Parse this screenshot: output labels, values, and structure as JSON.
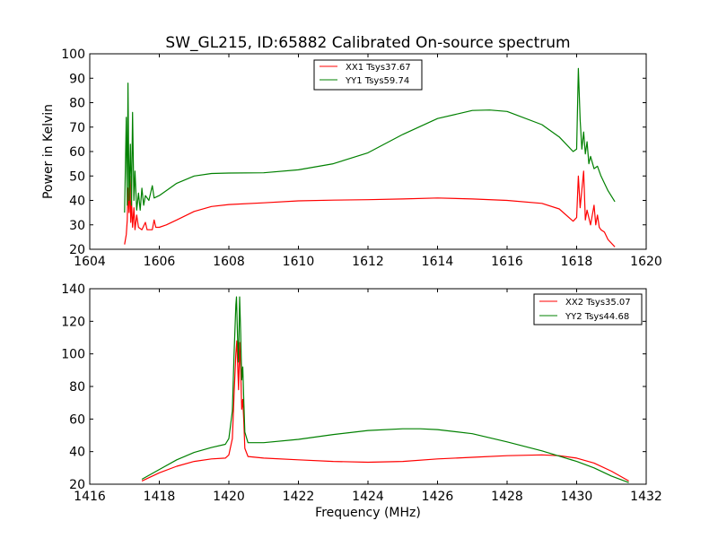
{
  "chart_data": [
    {
      "type": "line",
      "title": "SW_GL215, ID:65882 Calibrated On-source spectrum",
      "xlabel": "",
      "ylabel": "Power in Kelvin",
      "xlim": [
        1604,
        1620
      ],
      "ylim": [
        20,
        100
      ],
      "xticks": [
        1604,
        1606,
        1608,
        1610,
        1612,
        1614,
        1616,
        1618,
        1620
      ],
      "yticks": [
        20,
        30,
        40,
        50,
        60,
        70,
        80,
        90,
        100
      ],
      "legend_position": "top-center",
      "series": [
        {
          "name": "XX1 Tsys37.67",
          "color": "#ff0000",
          "points": [
            [
              1605.0,
              22
            ],
            [
              1605.05,
              26
            ],
            [
              1605.08,
              32
            ],
            [
              1605.1,
              45
            ],
            [
              1605.13,
              35
            ],
            [
              1605.15,
              50
            ],
            [
              1605.18,
              31
            ],
            [
              1605.2,
              40
            ],
            [
              1605.23,
              29
            ],
            [
              1605.27,
              37
            ],
            [
              1605.3,
              28
            ],
            [
              1605.35,
              34
            ],
            [
              1605.4,
              29
            ],
            [
              1605.5,
              28
            ],
            [
              1605.6,
              31
            ],
            [
              1605.65,
              28
            ],
            [
              1605.8,
              28
            ],
            [
              1605.85,
              32
            ],
            [
              1605.9,
              29
            ],
            [
              1606.0,
              29
            ],
            [
              1606.2,
              30
            ],
            [
              1606.5,
              32
            ],
            [
              1607.0,
              35.5
            ],
            [
              1607.5,
              37.5
            ],
            [
              1608,
              38.3
            ],
            [
              1609,
              39
            ],
            [
              1610,
              39.8
            ],
            [
              1611,
              40.1
            ],
            [
              1612,
              40.3
            ],
            [
              1613,
              40.6
            ],
            [
              1614,
              41
            ],
            [
              1615,
              40.6
            ],
            [
              1616,
              40
            ],
            [
              1617,
              38.8
            ],
            [
              1617.5,
              36.5
            ],
            [
              1617.9,
              31.5
            ],
            [
              1618.0,
              33
            ],
            [
              1618.05,
              50
            ],
            [
              1618.1,
              37
            ],
            [
              1618.2,
              52
            ],
            [
              1618.25,
              32
            ],
            [
              1618.3,
              36
            ],
            [
              1618.4,
              30
            ],
            [
              1618.5,
              38
            ],
            [
              1618.55,
              30
            ],
            [
              1618.6,
              34
            ],
            [
              1618.65,
              29
            ],
            [
              1618.7,
              28
            ],
            [
              1618.8,
              27
            ],
            [
              1618.9,
              24
            ],
            [
              1619.1,
              21
            ]
          ]
        },
        {
          "name": "YY1 Tsys59.74",
          "color": "#008000",
          "points": [
            [
              1605.0,
              35
            ],
            [
              1605.05,
              74
            ],
            [
              1605.08,
              38
            ],
            [
              1605.1,
              88
            ],
            [
              1605.13,
              40
            ],
            [
              1605.17,
              63
            ],
            [
              1605.2,
              38
            ],
            [
              1605.23,
              76
            ],
            [
              1605.27,
              40
            ],
            [
              1605.3,
              52
            ],
            [
              1605.35,
              36
            ],
            [
              1605.4,
              43
            ],
            [
              1605.45,
              36
            ],
            [
              1605.5,
              45
            ],
            [
              1605.55,
              38
            ],
            [
              1605.6,
              42
            ],
            [
              1605.7,
              40
            ],
            [
              1605.8,
              46
            ],
            [
              1605.85,
              41
            ],
            [
              1606.0,
              42
            ],
            [
              1606.2,
              44
            ],
            [
              1606.5,
              47
            ],
            [
              1607.0,
              50
            ],
            [
              1607.5,
              51
            ],
            [
              1608,
              51.2
            ],
            [
              1609,
              51.3
            ],
            [
              1610,
              52.5
            ],
            [
              1611,
              55
            ],
            [
              1612,
              59.5
            ],
            [
              1613,
              67
            ],
            [
              1614,
              73.5
            ],
            [
              1615,
              76.8
            ],
            [
              1615.5,
              77
            ],
            [
              1616,
              76.4
            ],
            [
              1617,
              71
            ],
            [
              1617.5,
              66
            ],
            [
              1617.9,
              60
            ],
            [
              1618.0,
              61
            ],
            [
              1618.05,
              94
            ],
            [
              1618.1,
              73
            ],
            [
              1618.15,
              61
            ],
            [
              1618.2,
              68
            ],
            [
              1618.25,
              59
            ],
            [
              1618.3,
              64
            ],
            [
              1618.35,
              55
            ],
            [
              1618.4,
              58
            ],
            [
              1618.5,
              53
            ],
            [
              1618.6,
              54
            ],
            [
              1618.7,
              50
            ],
            [
              1618.9,
              44
            ],
            [
              1619.1,
              39.5
            ]
          ]
        }
      ]
    },
    {
      "type": "line",
      "title": "",
      "xlabel": "Frequency (MHz)",
      "ylabel": "",
      "xlim": [
        1416,
        1432
      ],
      "ylim": [
        20,
        140
      ],
      "xticks": [
        1416,
        1418,
        1420,
        1422,
        1424,
        1426,
        1428,
        1430,
        1432
      ],
      "yticks": [
        20,
        40,
        60,
        80,
        100,
        120,
        140
      ],
      "legend_position": "top-right",
      "series": [
        {
          "name": "XX2 Tsys35.07",
          "color": "#ff0000",
          "points": [
            [
              1417.5,
              22
            ],
            [
              1418,
              27
            ],
            [
              1418.5,
              31
            ],
            [
              1419,
              34
            ],
            [
              1419.5,
              35.5
            ],
            [
              1419.9,
              36
            ],
            [
              1420.0,
              38
            ],
            [
              1420.1,
              48
            ],
            [
              1420.15,
              75
            ],
            [
              1420.2,
              100
            ],
            [
              1420.23,
              108
            ],
            [
              1420.25,
              95
            ],
            [
              1420.28,
              78
            ],
            [
              1420.31,
              107
            ],
            [
              1420.34,
              90
            ],
            [
              1420.37,
              66
            ],
            [
              1420.4,
              72
            ],
            [
              1420.43,
              58
            ],
            [
              1420.46,
              42
            ],
            [
              1420.55,
              37
            ],
            [
              1421,
              36
            ],
            [
              1422,
              35
            ],
            [
              1423,
              34
            ],
            [
              1424,
              33.5
            ],
            [
              1425,
              34
            ],
            [
              1426,
              35.5
            ],
            [
              1427,
              36.5
            ],
            [
              1428,
              37.5
            ],
            [
              1429,
              38
            ],
            [
              1429.5,
              37.5
            ],
            [
              1430,
              36
            ],
            [
              1430.5,
              33
            ],
            [
              1431,
              28
            ],
            [
              1431.5,
              22
            ]
          ]
        },
        {
          "name": "YY2 Tsys44.68",
          "color": "#008000",
          "points": [
            [
              1417.5,
              23
            ],
            [
              1418,
              29
            ],
            [
              1418.5,
              35
            ],
            [
              1419,
              39.5
            ],
            [
              1419.5,
              42.5
            ],
            [
              1419.9,
              44.5
            ],
            [
              1420.0,
              48
            ],
            [
              1420.1,
              65
            ],
            [
              1420.15,
              100
            ],
            [
              1420.2,
              130
            ],
            [
              1420.22,
              135
            ],
            [
              1420.25,
              110
            ],
            [
              1420.28,
              95
            ],
            [
              1420.31,
              135
            ],
            [
              1420.34,
              112
            ],
            [
              1420.37,
              84
            ],
            [
              1420.4,
              92
            ],
            [
              1420.43,
              70
            ],
            [
              1420.46,
              52
            ],
            [
              1420.55,
              45.5
            ],
            [
              1421,
              45.5
            ],
            [
              1422,
              47.5
            ],
            [
              1423,
              50.5
            ],
            [
              1424,
              53
            ],
            [
              1425,
              54
            ],
            [
              1425.5,
              54
            ],
            [
              1426,
              53.5
            ],
            [
              1427,
              51
            ],
            [
              1428,
              46
            ],
            [
              1429,
              40.5
            ],
            [
              1430,
              34
            ],
            [
              1430.5,
              30
            ],
            [
              1431,
              25
            ],
            [
              1431.5,
              21
            ]
          ]
        }
      ]
    }
  ]
}
